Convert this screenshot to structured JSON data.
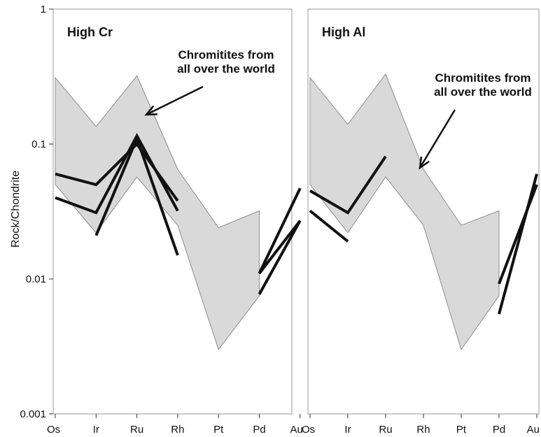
{
  "chart_data": {
    "type": "line",
    "ylabel": "Rock/Chondrite",
    "yscale": "log",
    "ylim": [
      0.001,
      1
    ],
    "yticks": [
      "1",
      "0.1",
      "0.01",
      "0.001"
    ],
    "yticks_values": [
      1,
      0.1,
      0.01,
      0.001
    ],
    "categories": [
      "Os",
      "Ir",
      "Ru",
      "Rh",
      "Pt",
      "Pd",
      "Au"
    ],
    "band_color": "#d9d9d9",
    "line_color": "#111111",
    "panels": [
      {
        "title": "High Cr",
        "annotation": [
          "Chromitites from",
          "all over the world"
        ],
        "band": {
          "upper": [
            0.31,
            0.135,
            0.32,
            0.065,
            0.024,
            0.032,
            null
          ],
          "lower": [
            0.05,
            0.022,
            0.057,
            0.025,
            0.003,
            0.0075,
            null
          ]
        },
        "series": [
          {
            "values": [
              0.06,
              0.05,
              0.1,
              0.038,
              null,
              null,
              null
            ]
          },
          {
            "values": [
              0.04,
              0.031,
              0.115,
              0.032,
              null,
              null,
              null
            ]
          },
          {
            "values": [
              null,
              0.021,
              0.11,
              0.015,
              null,
              null,
              null
            ]
          },
          {
            "values": [
              null,
              null,
              null,
              null,
              null,
              0.011,
              0.047
            ]
          },
          {
            "values": [
              null,
              null,
              null,
              null,
              null,
              0.011,
              0.027
            ]
          },
          {
            "values": [
              null,
              null,
              null,
              null,
              null,
              0.0077,
              0.027
            ]
          }
        ]
      },
      {
        "title": "High Al",
        "annotation": [
          "Chromitites from",
          "all over the world"
        ],
        "band": {
          "upper": [
            0.31,
            0.14,
            0.33,
            0.065,
            0.025,
            0.032,
            null
          ],
          "lower": [
            0.05,
            0.022,
            0.057,
            0.025,
            0.003,
            0.0075,
            null
          ]
        },
        "series": [
          {
            "values": [
              0.045,
              0.031,
              0.081,
              null,
              null,
              null,
              null
            ]
          },
          {
            "values": [
              0.032,
              0.019,
              null,
              null,
              null,
              null,
              null
            ]
          },
          {
            "values": [
              null,
              null,
              null,
              null,
              null,
              0.0092,
              0.05
            ]
          },
          {
            "values": [
              null,
              null,
              null,
              null,
              null,
              0.0055,
              0.06
            ]
          }
        ]
      }
    ]
  }
}
